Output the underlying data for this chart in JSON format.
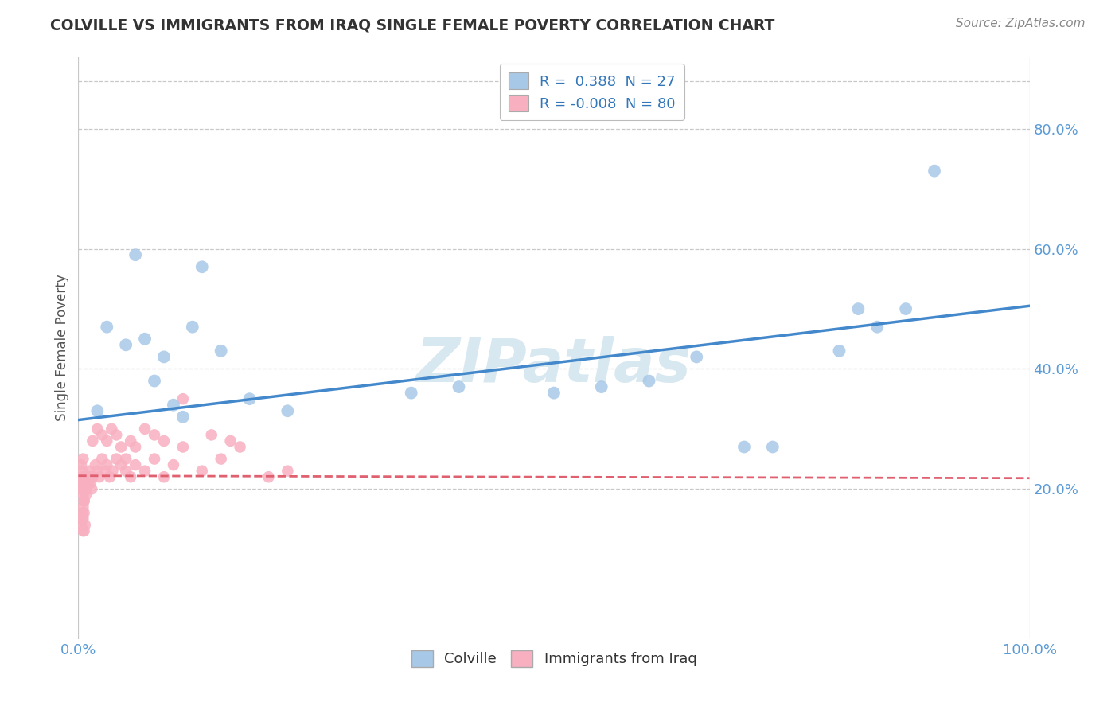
{
  "title": "COLVILLE VS IMMIGRANTS FROM IRAQ SINGLE FEMALE POVERTY CORRELATION CHART",
  "source": "Source: ZipAtlas.com",
  "ylabel": "Single Female Poverty",
  "xlim": [
    0.0,
    1.0
  ],
  "ylim": [
    -0.05,
    0.92
  ],
  "ytick_vals": [
    0.2,
    0.4,
    0.6,
    0.8
  ],
  "ytick_labels": [
    "20.0%",
    "40.0%",
    "60.0%",
    "80.0%"
  ],
  "xtick_vals": [
    0.0,
    1.0
  ],
  "xtick_labels": [
    "0.0%",
    "100.0%"
  ],
  "legend_r_blue": " 0.388",
  "legend_n_blue": "27",
  "legend_r_pink": "-0.008",
  "legend_n_pink": "80",
  "blue_color": "#a8c8e8",
  "pink_color": "#f8b0c0",
  "blue_line_color": "#4488cc",
  "pink_line_color": "#e06070",
  "axis_color": "#5b9bd5",
  "background_color": "#ffffff",
  "grid_color": "#c8c8c8",
  "watermark_color": "#d8e8f0",
  "blue_x": [
    0.02,
    0.03,
    0.05,
    0.07,
    0.08,
    0.09,
    0.1,
    0.12,
    0.15,
    0.18,
    0.22,
    0.35,
    0.4,
    0.5,
    0.55,
    0.6,
    0.65,
    0.7,
    0.73,
    0.8,
    0.82,
    0.84,
    0.87,
    0.9,
    0.11,
    0.13,
    0.06
  ],
  "blue_y": [
    0.33,
    0.47,
    0.44,
    0.45,
    0.38,
    0.42,
    0.34,
    0.47,
    0.43,
    0.35,
    0.33,
    0.36,
    0.37,
    0.36,
    0.37,
    0.38,
    0.42,
    0.27,
    0.27,
    0.43,
    0.5,
    0.47,
    0.5,
    0.73,
    0.32,
    0.57,
    0.59
  ],
  "pink_x_cluster1": [
    0.003,
    0.004,
    0.005,
    0.006,
    0.007,
    0.008,
    0.009,
    0.01,
    0.011,
    0.012,
    0.013,
    0.014,
    0.015,
    0.005,
    0.006,
    0.007,
    0.008,
    0.009,
    0.01,
    0.004,
    0.005,
    0.006,
    0.007,
    0.008,
    0.003,
    0.004,
    0.005,
    0.006,
    0.003,
    0.004,
    0.005,
    0.006,
    0.007,
    0.004,
    0.005,
    0.006,
    0.003,
    0.004,
    0.005,
    0.003
  ],
  "pink_y_cluster1": [
    0.22,
    0.21,
    0.2,
    0.22,
    0.21,
    0.2,
    0.22,
    0.21,
    0.23,
    0.22,
    0.21,
    0.2,
    0.22,
    0.19,
    0.18,
    0.21,
    0.2,
    0.22,
    0.21,
    0.22,
    0.17,
    0.21,
    0.22,
    0.19,
    0.2,
    0.21,
    0.22,
    0.18,
    0.14,
    0.15,
    0.13,
    0.16,
    0.14,
    0.16,
    0.15,
    0.13,
    0.24,
    0.23,
    0.25,
    0.2
  ],
  "pink_x_spread": [
    0.015,
    0.018,
    0.02,
    0.022,
    0.025,
    0.028,
    0.03,
    0.033,
    0.036,
    0.04,
    0.045,
    0.05,
    0.055,
    0.06,
    0.07,
    0.08,
    0.09,
    0.1,
    0.11,
    0.13,
    0.15,
    0.17,
    0.2,
    0.22,
    0.015,
    0.02,
    0.025,
    0.03,
    0.035,
    0.04,
    0.045,
    0.05,
    0.055,
    0.06,
    0.07,
    0.08,
    0.09,
    0.11,
    0.14,
    0.16
  ],
  "pink_y_spread": [
    0.22,
    0.24,
    0.23,
    0.22,
    0.25,
    0.23,
    0.24,
    0.22,
    0.23,
    0.25,
    0.24,
    0.23,
    0.22,
    0.24,
    0.23,
    0.25,
    0.22,
    0.24,
    0.35,
    0.23,
    0.25,
    0.27,
    0.22,
    0.23,
    0.28,
    0.3,
    0.29,
    0.28,
    0.3,
    0.29,
    0.27,
    0.25,
    0.28,
    0.27,
    0.3,
    0.29,
    0.28,
    0.27,
    0.29,
    0.28
  ],
  "blue_line_x0": 0.0,
  "blue_line_y0": 0.315,
  "blue_line_x1": 1.0,
  "blue_line_y1": 0.505,
  "pink_line_x0": 0.0,
  "pink_line_y0": 0.222,
  "pink_line_x1": 1.0,
  "pink_line_y1": 0.218
}
